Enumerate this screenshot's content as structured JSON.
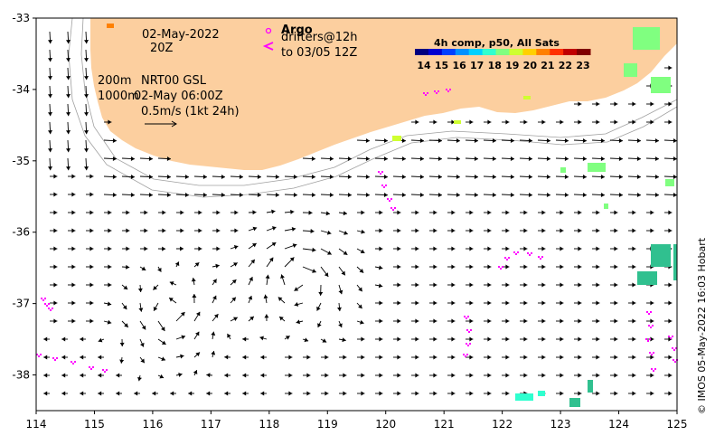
{
  "map": {
    "x_ticks": [
      "114",
      "115",
      "116",
      "117",
      "118",
      "119",
      "120",
      "121",
      "122",
      "123",
      "124",
      "125"
    ],
    "y_ticks": [
      "-33",
      "-34",
      "-35",
      "-36",
      "-37",
      "-38"
    ],
    "lon_range": [
      114,
      125
    ],
    "lat_range": [
      -38.5,
      -33
    ]
  },
  "annotations": {
    "date": "02-May-2022",
    "time": "20Z",
    "contour_200": "200m",
    "contour_1000": "1000m",
    "product": "NRT00 GSL",
    "product_time": "02-May 06:00Z",
    "scale": "0.5m/s (1kt 24h)"
  },
  "legend": {
    "argo": "Argo",
    "drifters": "drifters@12h",
    "drifters_to": "to 03/05 12Z",
    "sst_title": "4h comp, p50, All Sats",
    "sst_ticks": [
      "14",
      "15",
      "16",
      "17",
      "18",
      "19",
      "20",
      "21",
      "22",
      "23"
    ],
    "sst_colors": [
      "#00007f",
      "#0000d0",
      "#0040ff",
      "#0090ff",
      "#00d0ff",
      "#30ffcf",
      "#80ff80",
      "#cfff30",
      "#ffd000",
      "#ff8000",
      "#ff3000",
      "#c00000",
      "#7f0000"
    ]
  },
  "credit": "© IMOS 05-May-2022 16:03 Hobart",
  "colors": {
    "land": "#fccf9f",
    "drifter": "#ff00ff"
  }
}
